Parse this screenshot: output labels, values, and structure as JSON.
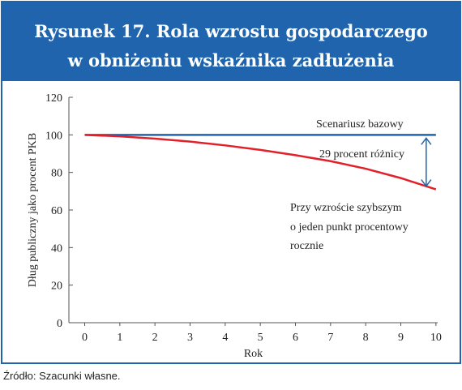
{
  "chart_data": {
    "type": "line",
    "title": [
      "Rysunek 17. Rola wzrostu gospodarczego",
      "w obniżeniu wskaźnika zadłużenia"
    ],
    "x_label": "Rok",
    "y_label": "Dług publiczny jako procent PKB",
    "x": [
      0,
      1,
      2,
      3,
      4,
      5,
      6,
      7,
      8,
      9,
      10
    ],
    "series": [
      {
        "name": "Scenariusz bazowy",
        "color": "#1f64ad",
        "values": [
          100,
          100,
          100,
          100,
          100,
          100,
          100,
          100,
          100,
          100,
          100
        ]
      },
      {
        "name": "Przy wzroście szybszym",
        "color": "#e3202a",
        "values": [
          100,
          99.2,
          98,
          96.4,
          94.4,
          92,
          89.2,
          86,
          82,
          77,
          71
        ]
      }
    ],
    "annotations": [
      "29 procent różnicy",
      "o jeden punkt procentowy",
      "rocznie"
    ],
    "xlim": [
      -0.45,
      10.05
    ],
    "ylim": [
      0,
      120
    ],
    "xticks": [
      0,
      1,
      2,
      3,
      4,
      5,
      6,
      7,
      8,
      9,
      10
    ],
    "yticks": [
      0,
      20,
      40,
      60,
      80,
      100,
      120
    ],
    "grid": false,
    "source": "Źródło: Szacunki własne."
  }
}
